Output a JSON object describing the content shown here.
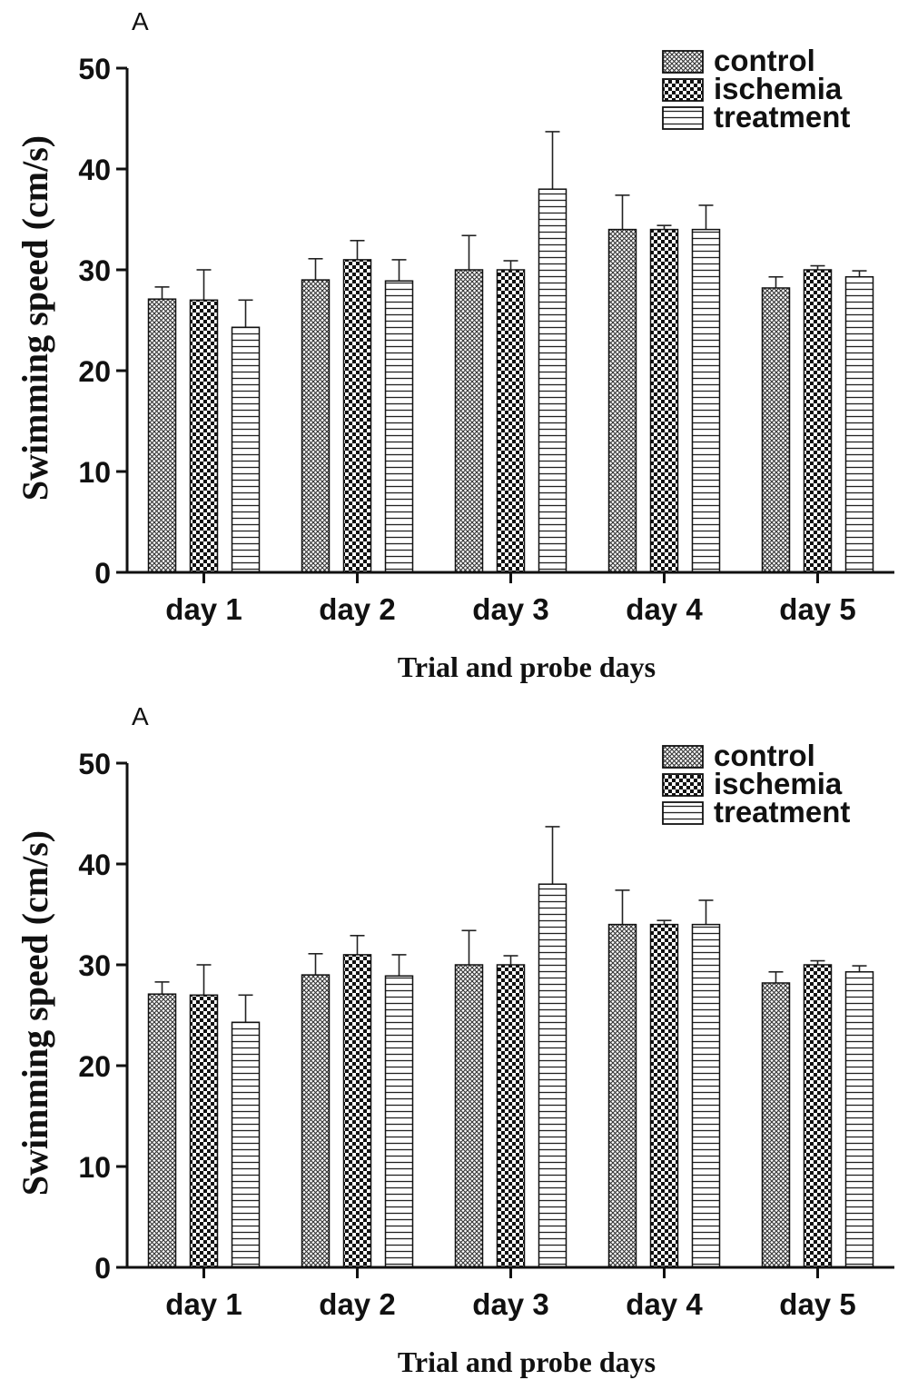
{
  "chart_data": [
    {
      "type": "bar",
      "panel_label": "A",
      "categories": [
        "day 1",
        "day 2",
        "day 3",
        "day 4",
        "day 5"
      ],
      "series": [
        {
          "name": "control",
          "values": [
            27.1,
            29.0,
            30.0,
            34.0,
            28.2
          ],
          "errors": [
            1.2,
            2.1,
            3.4,
            3.4,
            1.1
          ]
        },
        {
          "name": "ischemia",
          "values": [
            27.0,
            31.0,
            30.0,
            34.0,
            30.0
          ],
          "errors": [
            3.0,
            1.9,
            0.9,
            0.4,
            0.4
          ]
        },
        {
          "name": "treatment",
          "values": [
            24.3,
            28.9,
            38.0,
            34.0,
            29.3
          ],
          "errors": [
            2.7,
            2.1,
            5.7,
            2.4,
            0.6
          ]
        }
      ],
      "xlabel": "Trial and probe days",
      "ylabel": "Swimming speed (cm/s)",
      "ylim": [
        0,
        50
      ],
      "yticks": [
        "0",
        "10",
        "20",
        "30",
        "40",
        "50"
      ],
      "legend_position": "top-right",
      "grid": false
    },
    {
      "type": "bar",
      "panel_label": "A",
      "categories": [
        "day 1",
        "day 2",
        "day 3",
        "day 4",
        "day 5"
      ],
      "series": [
        {
          "name": "control",
          "values": [
            27.1,
            29.0,
            30.0,
            34.0,
            28.2
          ],
          "errors": [
            1.2,
            2.1,
            3.4,
            3.4,
            1.1
          ]
        },
        {
          "name": "ischemia",
          "values": [
            27.0,
            31.0,
            30.0,
            34.0,
            30.0
          ],
          "errors": [
            3.0,
            1.9,
            0.9,
            0.4,
            0.4
          ]
        },
        {
          "name": "treatment",
          "values": [
            24.3,
            28.9,
            38.0,
            34.0,
            29.3
          ],
          "errors": [
            2.7,
            2.1,
            5.7,
            2.4,
            0.6
          ]
        }
      ],
      "xlabel": "Trial and probe days",
      "ylabel": "Swimming speed (cm/s)",
      "ylim": [
        0,
        50
      ],
      "yticks": [
        "0",
        "10",
        "20",
        "30",
        "40",
        "50"
      ],
      "legend_position": "top-right",
      "grid": false
    }
  ]
}
